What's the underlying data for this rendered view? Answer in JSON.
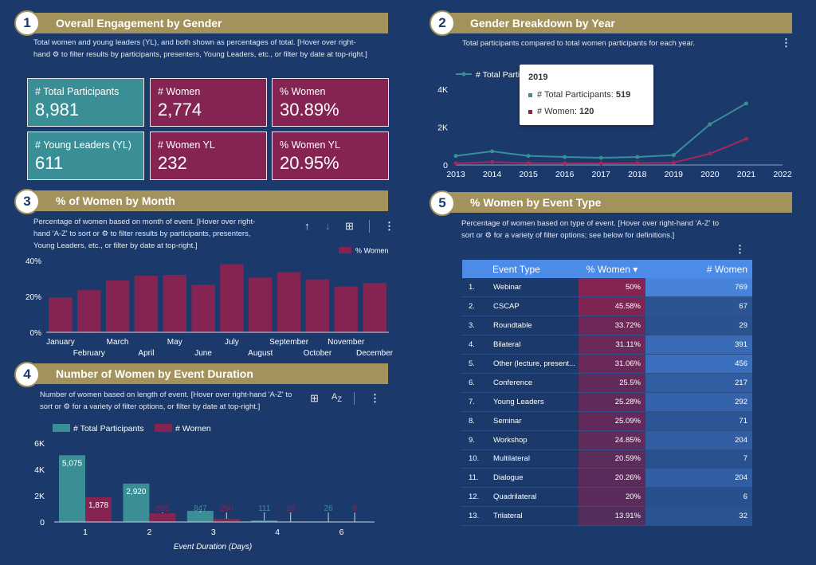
{
  "sections": [
    {
      "num": "1",
      "title": "Overall Engagement by Gender",
      "desc": [
        "Total women and young leaders (YL), and both shown as percentages of total. [Hover over right-",
        "hand ⚙ to filter results by participants, presenters, Young Leaders, etc., or filter by date at top-right.]"
      ]
    },
    {
      "num": "2",
      "title": "Gender Breakdown by Year",
      "desc": [
        "Total participants compared to total women participants for each year."
      ]
    },
    {
      "num": "3",
      "title": "% of Women by Month",
      "desc": [
        "Percentage of women based on month of event. [Hover over right-",
        "hand 'A-Z' to sort or ⚙ to filter results by participants, presenters,",
        "Young Leaders, etc., or filter by date at top-right.]"
      ]
    },
    {
      "num": "4",
      "title": "Number of Women by Event Duration",
      "desc": [
        "Number of women based on length of event. [Hover over right-hand 'A-Z' to",
        "sort or ⚙ for a variety of filter options, or filter by date at top-right.]"
      ]
    },
    {
      "num": "5",
      "title": "% Women by Event Type",
      "desc": [
        "Percentage of women based on type of event. [Hover over right-hand 'A-Z' to",
        "sort or ⚙ for a variety of filter options; see below for definitions.]"
      ]
    }
  ],
  "kpis": [
    {
      "label": "# Total Participants",
      "value": "8,981",
      "color": "#3a8f96"
    },
    {
      "label": "# Women",
      "value": "2,774",
      "color": "#852452"
    },
    {
      "label": "% Women",
      "value": "30.89%",
      "color": "#852452"
    },
    {
      "label": "# Young Leaders (YL)",
      "value": "611",
      "color": "#3a8f96"
    },
    {
      "label": "# Women YL",
      "value": "232",
      "color": "#852452"
    },
    {
      "label": "% Women YL",
      "value": "20.95%",
      "color": "#852452"
    }
  ],
  "tooltip": {
    "year": "2019",
    "total_label": "# Total Participants:",
    "total_value": "519",
    "women_label": "# Women:",
    "women_value": "120"
  },
  "icons": {
    "more": "more-vert-icon",
    "sort_up": "arrow-up-icon",
    "sort_down": "arrow-down-icon",
    "chart_settings": "chart-settings-icon",
    "az_sort": "az-sort-icon"
  },
  "chart_data": [
    {
      "id": "year",
      "type": "line",
      "x": [
        2013,
        2014,
        2015,
        2016,
        2017,
        2018,
        2019,
        2020,
        2021
      ],
      "xticks": [
        "2013",
        "2014",
        "2015",
        "2016",
        "2017",
        "2018",
        "2019",
        "2020",
        "2021",
        "2022"
      ],
      "yticks": [
        "0",
        "2K",
        "4K"
      ],
      "ylim": [
        0,
        4000
      ],
      "legend": "top-left",
      "series": [
        {
          "name": "# Total Participants",
          "values": [
            480,
            720,
            480,
            420,
            380,
            420,
            519,
            2150,
            3250
          ],
          "color": "#3a8f96"
        },
        {
          "name": "# Women",
          "values": [
            90,
            160,
            100,
            90,
            80,
            100,
            120,
            600,
            1380
          ],
          "color": "#a3285d"
        }
      ],
      "legend_visible_label": "# Total Parti"
    },
    {
      "id": "month",
      "type": "bar",
      "categories": [
        "January",
        "February",
        "March",
        "April",
        "May",
        "June",
        "July",
        "August",
        "September",
        "October",
        "November",
        "December"
      ],
      "series": [
        {
          "name": "% Women",
          "values": [
            19.5,
            23.5,
            29,
            31.5,
            32,
            26.5,
            38,
            30.5,
            33.5,
            29.5,
            25.5,
            27.5
          ],
          "color": "#852452"
        }
      ],
      "yticks": [
        "0%",
        "20%",
        "40%"
      ],
      "ylim": [
        0,
        40
      ],
      "legend": "top-right"
    },
    {
      "id": "duration",
      "type": "bar",
      "categories": [
        "1",
        "2",
        "3",
        "4",
        "6"
      ],
      "series": [
        {
          "name": "# Total Participants",
          "values": [
            5075,
            2920,
            847,
            111,
            26
          ],
          "labels": [
            "5,075",
            "2,920",
            "847",
            "111",
            "26"
          ],
          "color": "#3a8f96"
        },
        {
          "name": "# Women",
          "values": [
            1878,
            665,
            250,
            26,
            8
          ],
          "labels": [
            "1,878",
            "665",
            "250",
            "26",
            "8"
          ],
          "color": "#852452"
        }
      ],
      "yticks": [
        "0",
        "2K",
        "4K",
        "6K"
      ],
      "ylim": [
        0,
        6000
      ],
      "xlabel": "Event Duration (Days)",
      "legend": "top-left"
    },
    {
      "id": "event_type",
      "type": "table",
      "columns": [
        "Event Type",
        "% Women ▾",
        "# Women"
      ],
      "rows": [
        {
          "rank": "1.",
          "type": "Webinar",
          "pct": "50%",
          "pct_value": 50,
          "count": "769",
          "count_value": 769
        },
        {
          "rank": "2.",
          "type": "CSCAP",
          "pct": "45.58%",
          "pct_value": 45.58,
          "count": "67",
          "count_value": 67
        },
        {
          "rank": "3.",
          "type": "Roundtable",
          "pct": "33.72%",
          "pct_value": 33.72,
          "count": "29",
          "count_value": 29
        },
        {
          "rank": "4.",
          "type": "Bilateral",
          "pct": "31.11%",
          "pct_value": 31.11,
          "count": "391",
          "count_value": 391
        },
        {
          "rank": "5.",
          "type": "Other (lecture, present...",
          "pct": "31.06%",
          "pct_value": 31.06,
          "count": "456",
          "count_value": 456
        },
        {
          "rank": "6.",
          "type": "Conference",
          "pct": "25.5%",
          "pct_value": 25.5,
          "count": "217",
          "count_value": 217
        },
        {
          "rank": "7.",
          "type": "Young Leaders",
          "pct": "25.28%",
          "pct_value": 25.28,
          "count": "292",
          "count_value": 292
        },
        {
          "rank": "8.",
          "type": "Seminar",
          "pct": "25.09%",
          "pct_value": 25.09,
          "count": "71",
          "count_value": 71
        },
        {
          "rank": "9.",
          "type": "Workshop",
          "pct": "24.85%",
          "pct_value": 24.85,
          "count": "204",
          "count_value": 204
        },
        {
          "rank": "10.",
          "type": "Multilateral",
          "pct": "20.59%",
          "pct_value": 20.59,
          "count": "7",
          "count_value": 7
        },
        {
          "rank": "11.",
          "type": "Dialogue",
          "pct": "20.26%",
          "pct_value": 20.26,
          "count": "204",
          "count_value": 204
        },
        {
          "rank": "12.",
          "type": "Quadrilateral",
          "pct": "20%",
          "pct_value": 20,
          "count": "6",
          "count_value": 6
        },
        {
          "rank": "13.",
          "type": "Trilateral",
          "pct": "13.91%",
          "pct_value": 13.91,
          "count": "32",
          "count_value": 32
        }
      ]
    }
  ]
}
